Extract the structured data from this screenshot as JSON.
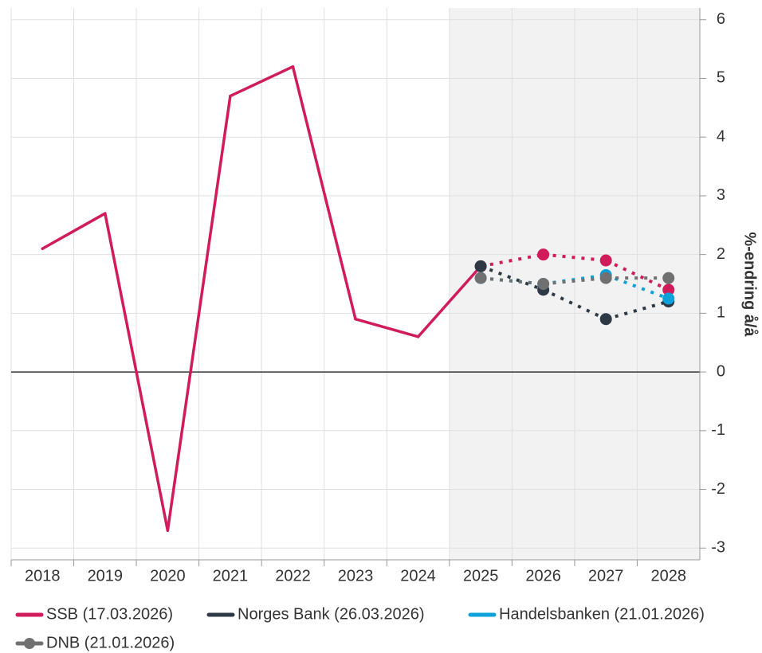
{
  "chart_data": {
    "type": "line",
    "categories": [
      "2018",
      "2019",
      "2020",
      "2021",
      "2022",
      "2023",
      "2024",
      "2025",
      "2026",
      "2027",
      "2028"
    ],
    "forecast_from": "2025",
    "y_label": "%-endring å/å",
    "ylim": [
      -3.2,
      6.2
    ],
    "yticks": [
      -3,
      -2,
      -1,
      0,
      1,
      2,
      3,
      4,
      5,
      6
    ],
    "grid": true,
    "legend": "bottom",
    "series": [
      {
        "name": "SSB (17.03.2026)",
        "color": "#d01c5b",
        "values": [
          2.1,
          2.7,
          -2.7,
          4.7,
          5.2,
          0.9,
          0.6,
          1.8,
          2.0,
          1.9,
          1.4
        ]
      },
      {
        "name": "Norges Bank (26.03.2026)",
        "color": "#2d3a45",
        "values": [
          null,
          null,
          null,
          null,
          null,
          null,
          null,
          1.8,
          1.4,
          0.9,
          1.2
        ]
      },
      {
        "name": "Handelsbanken (21.01.2026)",
        "color": "#0ea0d8",
        "values": [
          null,
          null,
          null,
          null,
          null,
          null,
          null,
          1.6,
          1.5,
          1.65,
          1.25
        ]
      },
      {
        "name": "DNB (21.01.2026)",
        "color": "#707070",
        "values": [
          null,
          null,
          null,
          null,
          null,
          null,
          null,
          1.6,
          1.5,
          1.6,
          1.6
        ]
      }
    ]
  }
}
